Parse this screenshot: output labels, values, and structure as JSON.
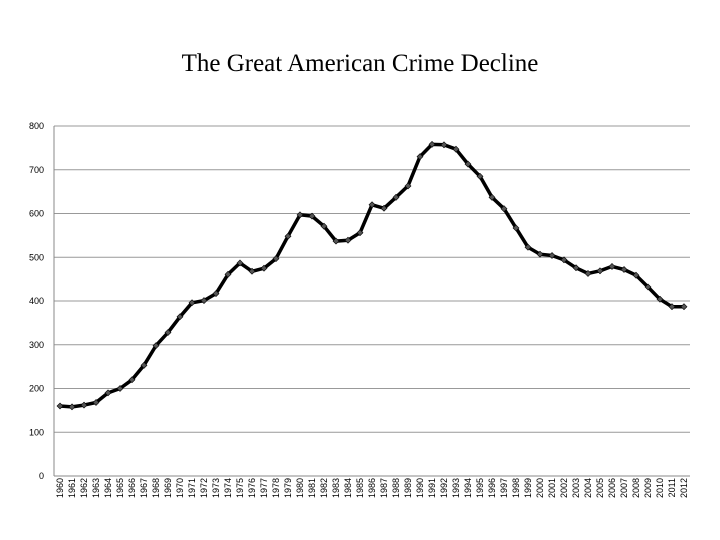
{
  "chart_data": {
    "type": "line",
    "title": "The Great American Crime Decline",
    "xlabel": "",
    "ylabel": "",
    "ylim": [
      0,
      800
    ],
    "yticks": [
      0,
      100,
      200,
      300,
      400,
      500,
      600,
      700,
      800
    ],
    "grid": true,
    "x": [
      "1960",
      "1961",
      "1962",
      "1963",
      "1964",
      "1965",
      "1966",
      "1967",
      "1968",
      "1969",
      "1970",
      "1971",
      "1972",
      "1973",
      "1974",
      "1975",
      "1976",
      "1977",
      "1978",
      "1979",
      "1980",
      "1981",
      "1982",
      "1983",
      "1984",
      "1985",
      "1986",
      "1987",
      "1988",
      "1989",
      "1990",
      "1991",
      "1992",
      "1993",
      "1994",
      "1995",
      "1996",
      "1997",
      "1998",
      "1999",
      "2000",
      "2001",
      "2002",
      "2003",
      "2004",
      "2005",
      "2006",
      "2007",
      "2008",
      "2009",
      "2010",
      "2011",
      "2012"
    ],
    "series": [
      {
        "values": [
          160,
          158,
          162,
          168,
          190,
          200,
          220,
          253,
          298,
          328,
          364,
          396,
          401,
          417,
          461,
          487,
          468,
          475,
          497,
          548,
          597,
          594,
          571,
          537,
          539,
          556,
          620,
          612,
          637,
          663,
          730,
          758,
          757,
          747,
          713,
          685,
          637,
          611,
          567,
          523,
          507,
          504,
          494,
          476,
          463,
          469,
          479,
          472,
          459,
          432,
          404,
          387,
          387
        ]
      }
    ],
    "line_color": "#000000",
    "marker_color": "#555555",
    "grid_color": "#999999"
  }
}
